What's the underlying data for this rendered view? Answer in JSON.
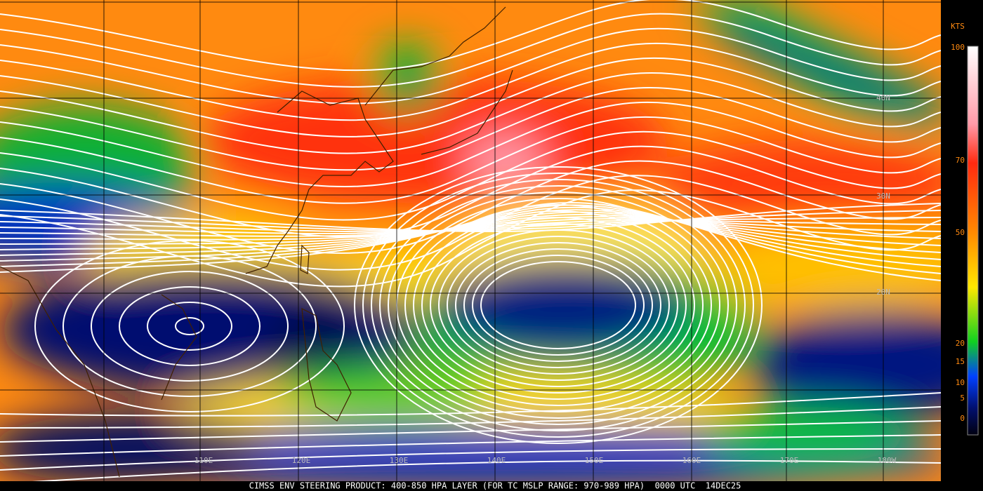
{
  "map": {
    "caption": "CIMSS ENV STEERING PRODUCT: 400-850 HPA LAYER (FOR TC MSLP RANGE: 970-989 HPA)  0000 UTC  14DEC25",
    "latitude_labels": [
      "40N",
      "30N",
      "20N"
    ],
    "longitude_labels": [
      "110E",
      "120E",
      "130E",
      "140E",
      "150E",
      "160E",
      "170E",
      "180W"
    ],
    "colorbar": {
      "unit": "KTS",
      "ticks": [
        100,
        70,
        50,
        20,
        15,
        10,
        5,
        0
      ]
    }
  }
}
